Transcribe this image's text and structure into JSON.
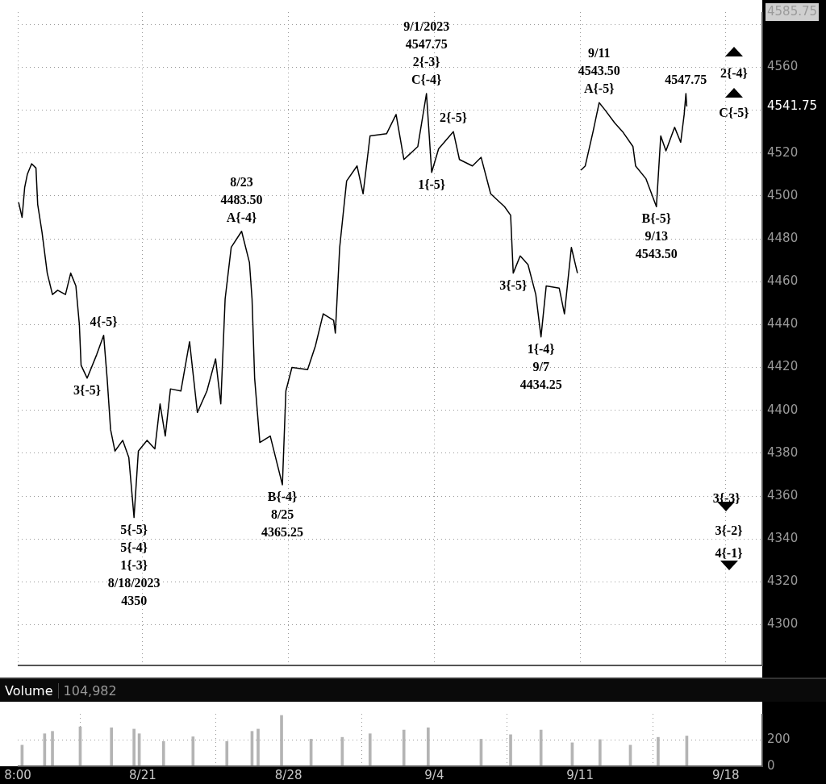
{
  "chart_data": [
    {
      "type": "line",
      "color": "#000000",
      "tick_labels": "y",
      "grid": true,
      "x": [
        "2023-08-15T01:00",
        "2023-08-15T05:00",
        "2023-08-15T08:00",
        "2023-08-15T11:00",
        "2023-08-15T16:00",
        "2023-08-15T21:00",
        "2023-08-15T23:00",
        "2023-08-16T04:00",
        "2023-08-16T10:00",
        "2023-08-16T16:00",
        "2023-08-16T22:00",
        "2023-08-17T07:00",
        "2023-08-17T13:00",
        "2023-08-17T19:00",
        "2023-08-17T23:00",
        "2023-08-18T01:00",
        "2023-08-18T08:00",
        "2023-08-18T19:00",
        "2023-08-19T03:00",
        "2023-08-19T07:00",
        "2023-08-19T11:00",
        "2023-08-19T16:00",
        "2023-08-20T01:00",
        "2023-08-20T08:00",
        "2023-08-20T14:00",
        "2023-08-20T19:00",
        "2023-08-21T05:00",
        "2023-08-21T14:00",
        "2023-08-21T20:00",
        "2023-08-22T02:00",
        "2023-08-22T08:00",
        "2023-08-22T20:00",
        "2023-08-23T06:00",
        "2023-08-23T15:00",
        "2023-08-24T02:00",
        "2023-08-24T12:00",
        "2023-08-24T18:00",
        "2023-08-24T23:00",
        "2023-08-25T06:00",
        "2023-08-25T18:00",
        "2023-08-26T03:00",
        "2023-08-26T06:00",
        "2023-08-26T09:00",
        "2023-08-26T15:00",
        "2023-08-27T03:00",
        "2023-08-27T17:00",
        "2023-08-27T21:00",
        "2023-08-28T04:00",
        "2023-08-28T22:00",
        "2023-08-29T07:00",
        "2023-08-29T16:00",
        "2023-08-30T04:00",
        "2023-08-30T06:00",
        "2023-08-30T11:00",
        "2023-08-30T19:00",
        "2023-08-31T07:00",
        "2023-08-31T14:00",
        "2023-08-31T22:00",
        "2023-09-01T17:00",
        "2023-09-02T04:00",
        "2023-09-02T13:00",
        "2023-09-03T05:00",
        "2023-09-03T15:00",
        "2023-09-03T21:00",
        "2023-09-04T05:00",
        "2023-09-04T22:00",
        "2023-09-05T05:00",
        "2023-09-05T20:00",
        "2023-09-06T06:00",
        "2023-09-06T17:00",
        "2023-09-07T09:00",
        "2023-09-07T16:00",
        "2023-09-07T19:00",
        "2023-09-08T03:00",
        "2023-09-08T12:00",
        "2023-09-08T21:00",
        "2023-09-09T03:00",
        "2023-09-09T09:00",
        "2023-09-10T00:00",
        "2023-09-10T06:00",
        "2023-09-10T14:00",
        "2023-09-10T21:00",
        "2023-09-10T23:00",
        "2023-09-11T01:00",
        "2023-09-11T06:00",
        "2023-09-11T15:00",
        "2023-09-11T22:00",
        "2023-09-12T05:00",
        "2023-09-12T16:00",
        "2023-09-13T01:00",
        "2023-09-13T13:00",
        "2023-09-13T16:00",
        "2023-09-14T04:00",
        "2023-09-14T16:00",
        "2023-09-14T21:00",
        "2023-09-15T03:00",
        "2023-09-15T13:00",
        "2023-09-15T20:00",
        "2023-09-16T00:00",
        "2023-09-16T02:00",
        "2023-09-16T03:00"
      ],
      "values": [
        4497,
        4490,
        4504,
        4510,
        4515,
        4513,
        4496,
        4483,
        4464,
        4454,
        4456,
        4454,
        4464,
        4458,
        4440,
        4421,
        4415,
        4426,
        4435,
        4415,
        4391,
        4381,
        4386,
        4378,
        4350,
        4381,
        4386,
        4382,
        4403,
        4388,
        4410,
        4409,
        4432,
        4399,
        4409,
        4424,
        4403,
        4452,
        4476,
        4483.5,
        4469,
        4452,
        4415,
        4385,
        4388,
        4365.25,
        4409,
        4420,
        4419,
        4430,
        4445,
        4442,
        4436,
        4476,
        4507,
        4514,
        4501,
        4528,
        4529,
        4538,
        4517,
        4523,
        4547.75,
        4511,
        4522,
        4530,
        4517,
        4514,
        4518,
        4501,
        4495,
        4491,
        4464,
        4472,
        4468,
        4454,
        4434.25,
        4458,
        4457,
        4445,
        4476,
        4464,
        null,
        4512,
        4514,
        4530,
        4543.5,
        4540,
        4534,
        4530,
        4523,
        4514,
        4508,
        4495,
        4528,
        4521,
        4532,
        4525,
        4538,
        4547.75,
        4541.75
      ],
      "xlim": [
        "2023-08-15",
        "2023-09-19T18:00"
      ],
      "xticks": [
        {
          "value": "2023-08-15",
          "label": null
        },
        {
          "value": "2023-08-21",
          "label": null
        },
        {
          "value": "2023-08-28",
          "label": null
        },
        {
          "value": "2023-09-04",
          "label": null
        },
        {
          "value": "2023-09-11",
          "label": null
        },
        {
          "value": "2023-09-18",
          "label": null
        }
      ],
      "ylim": [
        4281,
        4585.75
      ],
      "yticks": [
        4300,
        4320,
        4340,
        4360,
        4380,
        4400,
        4420,
        4440,
        4460,
        4480,
        4500,
        4520,
        {
          "value": 4540,
          "label": null
        },
        4560,
        {
          "value": 4580,
          "label": null
        },
        4585.75,
        4541.75
      ],
      "annotations": [
        "2{-4}",
        "C{-5}",
        "3{-3}",
        "3{-2}",
        "4{-1}",
        {
          "text": "C{-4}",
          "x": "2023-09-03T15:00",
          "y": 4547.75
        },
        {
          "text": "2{-3}",
          "x": "2023-09-03T15:00",
          "y": 4547.75
        },
        "4547.75",
        "9/1/2023",
        {
          "text": "A{-4}",
          "x": "2023-08-25T18:00",
          "y": 4483.5
        },
        {
          "text": "4483.50",
          "x": "2023-08-25T18:00",
          "y": 4483.5
        },
        "8/23",
        {
          "text": "4{-5}",
          "x": "2023-08-19T03:00",
          "y": 4435
        },
        {
          "text": "3{-5}",
          "x": "2023-08-18T08:00",
          "y": 4415
        },
        {
          "text": "5{-5}",
          "x": "2023-08-20T14:00",
          "y": 4350
        },
        {
          "text": "5{-4}",
          "x": "2023-08-20T14:00",
          "y": 4350
        },
        "1{-3}",
        "8/18/2023",
        "4350",
        {
          "text": "B{-4}",
          "x": "2023-08-27T17:00",
          "y": 4365.25
        },
        {
          "text": "8/25",
          "x": "2023-08-27T17:00",
          "y": 4365.25
        },
        "4365.25",
        {
          "text": "1{-5}",
          "x": "2023-09-03T21:00",
          "y": 4511
        },
        {
          "text": "2{-5}",
          "x": "2023-09-04T22:00",
          "y": 4530
        },
        {
          "text": "3{-5}",
          "x": "2023-09-07T19:00",
          "y": 4464
        },
        {
          "text": "1{-4}",
          "x": "2023-09-09T03:00",
          "y": 4434.25
        },
        {
          "text": "9/7",
          "x": "2023-09-09T03:00",
          "y": 4434.25
        },
        "4434.25",
        {
          "text": "A{-5}",
          "x": "2023-09-11T22:00",
          "y": 4543.5
        },
        {
          "text": "4543.50",
          "x": "2023-09-11T22:00",
          "y": 4543.5
        },
        "9/11",
        {
          "text": "4547.75",
          "x": "2023-09-16T02:00",
          "y": 4547.75
        },
        {
          "text": "B{-5}",
          "x": "2023-09-14T16:00",
          "y": 4495
        },
        {
          "text": "9/13",
          "x": "2023-09-14T16:00",
          "y": 4495
        },
        "4543.50"
      ]
    },
    {
      "type": "bar",
      "title": "Volume",
      "subtitle": "104,982",
      "color": "#b4b4b4",
      "grid": true,
      "x": [
        "2023-08-15T05:00",
        "2023-08-16T07:00",
        "2023-08-16T16:00",
        "2023-08-18T00:00",
        "2023-08-19T12:00",
        "2023-08-20T14:00",
        "2023-08-20T20:00",
        "2023-08-22T00:00",
        "2023-08-23T10:00",
        "2023-08-25T01:00",
        "2023-08-26T06:00",
        "2023-08-26T13:00",
        "2023-08-27T16:00",
        "2023-08-29T02:00",
        "2023-08-30T14:00",
        "2023-08-31T22:00",
        "2023-09-02T13:00",
        "2023-09-03T17:00",
        "2023-09-06T06:00",
        "2023-09-07T16:00",
        "2023-09-09T03:00",
        "2023-09-10T15:00",
        "2023-09-11T23:00",
        "2023-09-13T10:00",
        "2023-09-14T18:00",
        "2023-09-16T03:00"
      ],
      "values": [
        159,
        245,
        263,
        297,
        290,
        280,
        245,
        187,
        222,
        187,
        263,
        280,
        383,
        204,
        218,
        245,
        273,
        290,
        204,
        238,
        273,
        177,
        201,
        159,
        218,
        228
      ],
      "xlim": [
        "2023-08-15",
        "2023-09-19T18:00"
      ],
      "xticks": [
        {
          "value": "2023-08-15",
          "label": "8:00"
        },
        {
          "value": "2023-08-21",
          "label": "8/21"
        },
        {
          "value": "2023-08-28",
          "label": "8/28"
        },
        {
          "value": "2023-09-04",
          "label": "9/4"
        },
        {
          "value": "2023-09-11",
          "label": "9/11"
        },
        {
          "value": "2023-09-18",
          "label": "9/18"
        }
      ],
      "ylim": [
        0,
        395
      ],
      "yticks": [
        0,
        200
      ]
    }
  ]
}
